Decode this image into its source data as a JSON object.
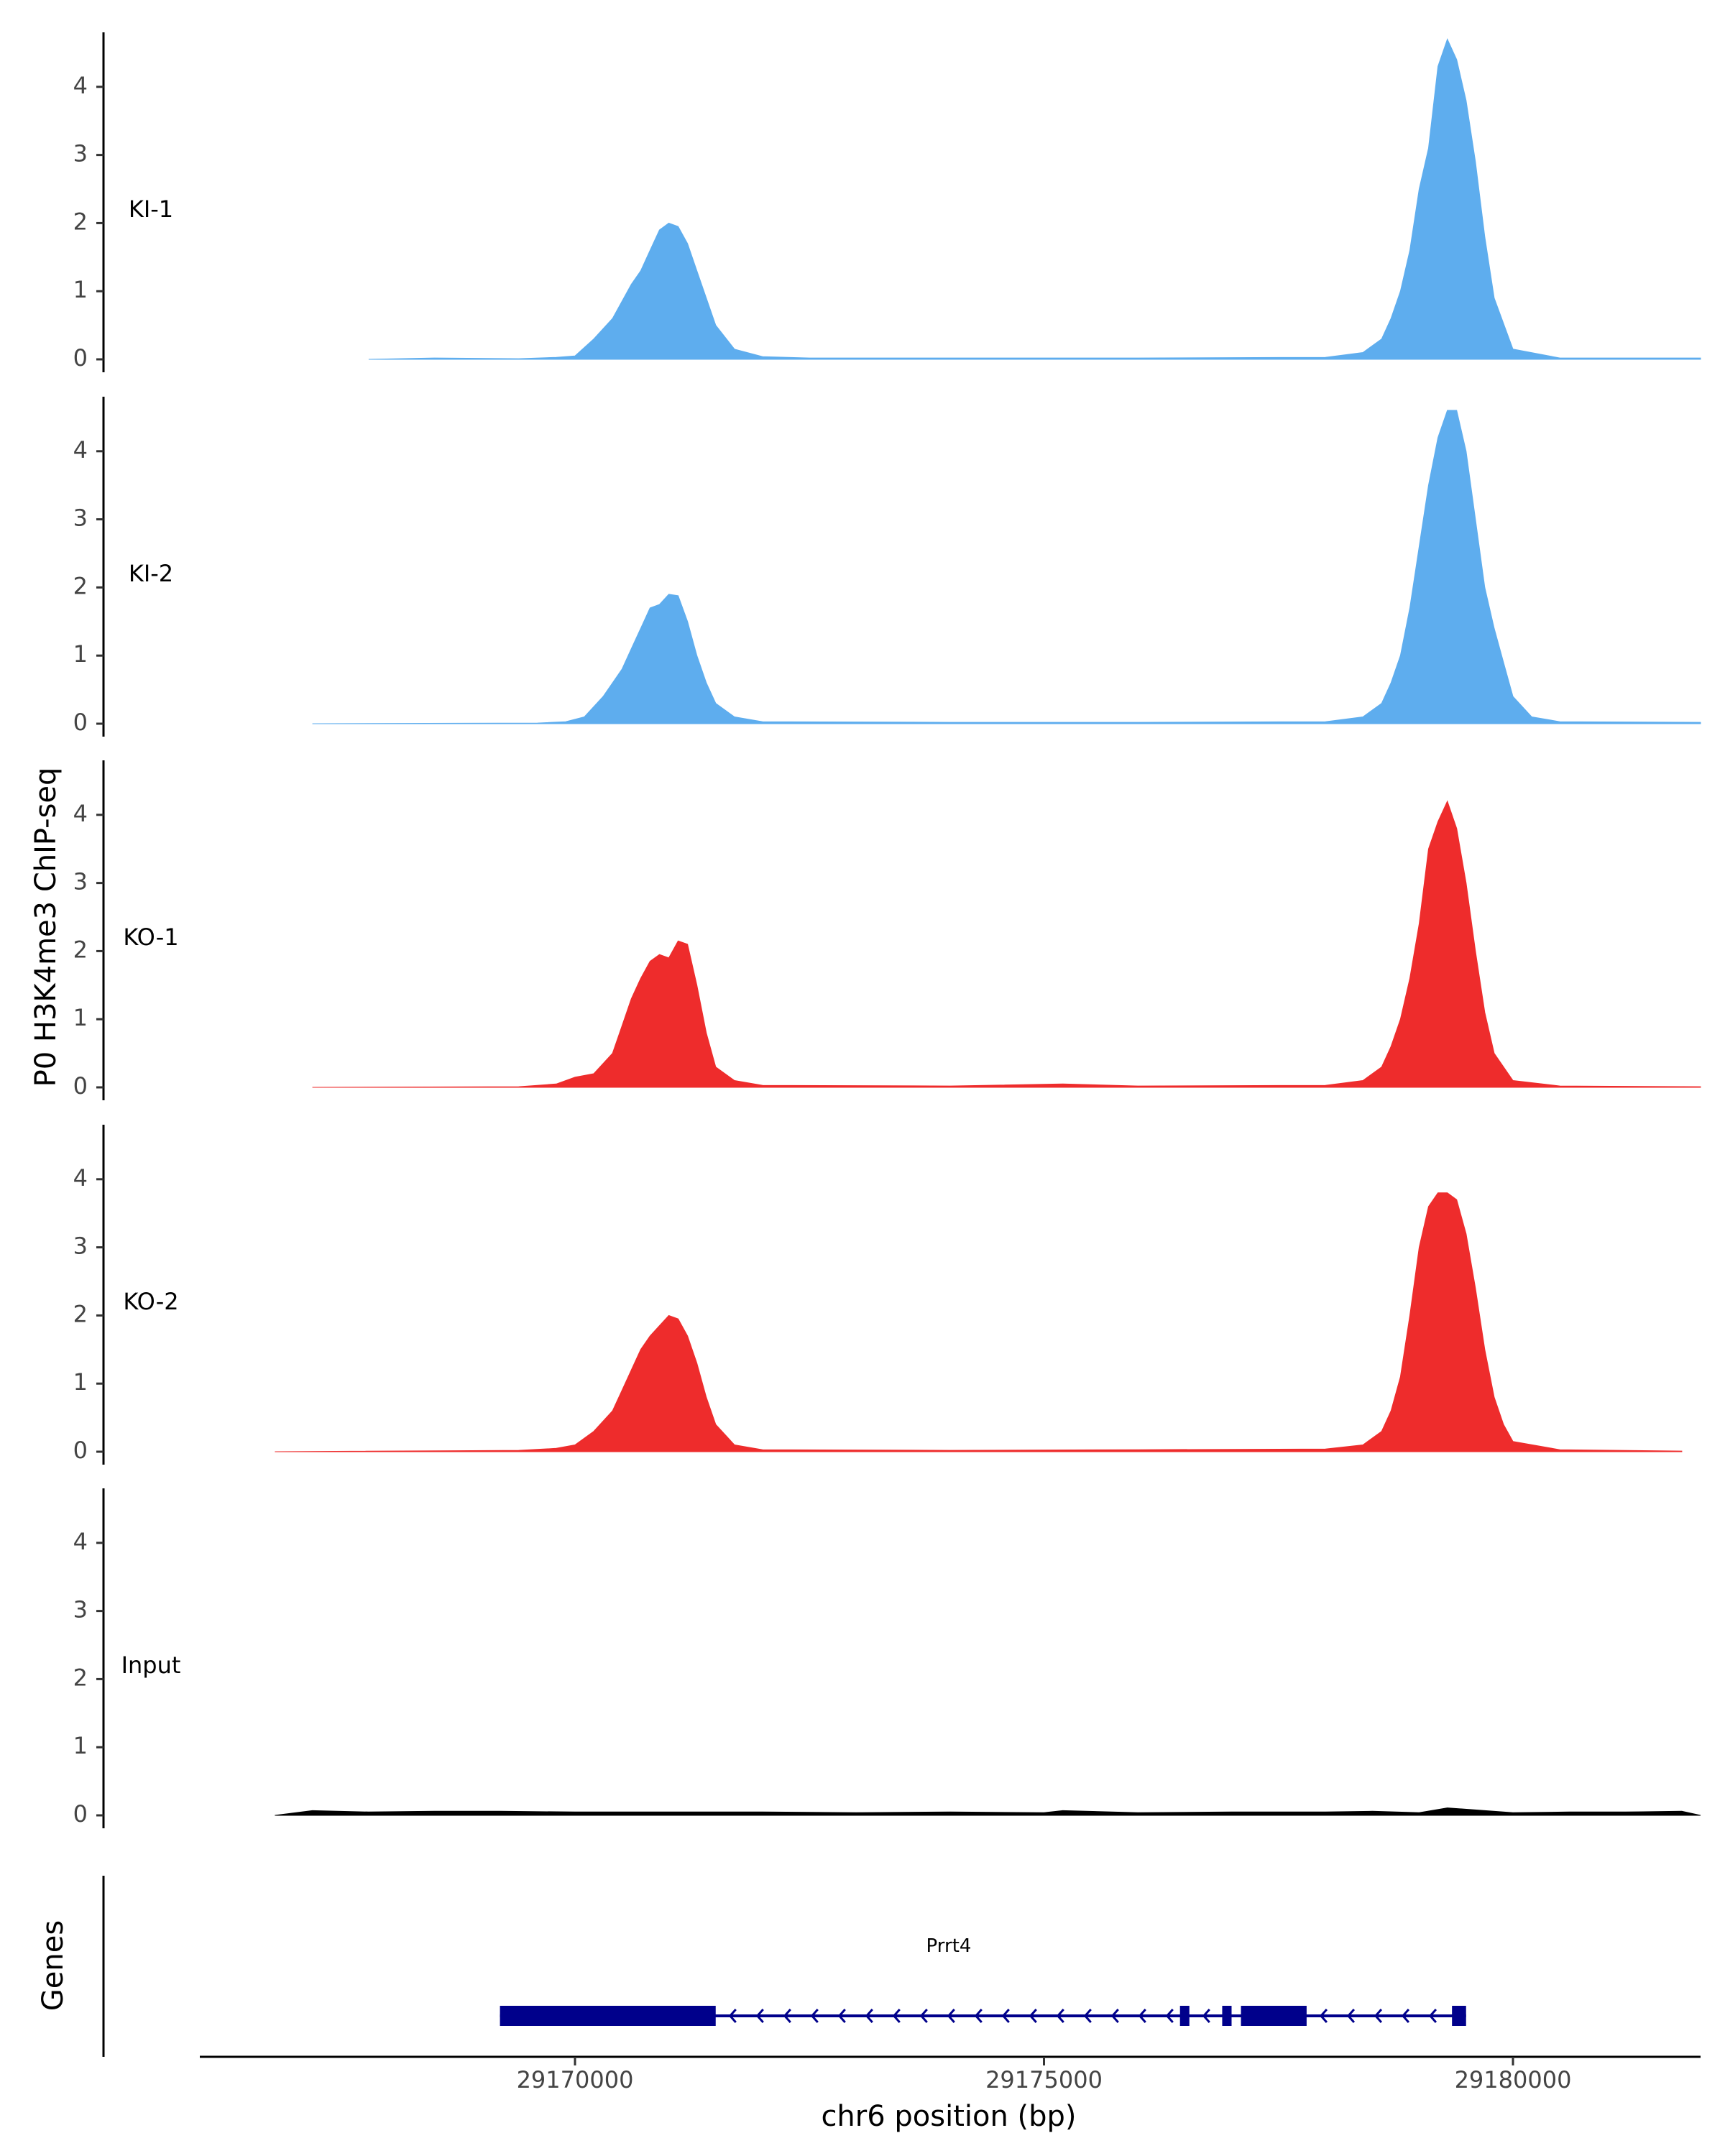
{
  "chart_data": {
    "type": "area",
    "ylabel": "P0 H3K4me3 ChIP-seq",
    "xlabel": "chr6 position (bp)",
    "x_range": [
      29166000,
      29182000
    ],
    "x_ticks": [
      29170000,
      29175000,
      29180000
    ],
    "x_tick_labels": [
      "29170000",
      "29175000",
      "29180000"
    ],
    "y_range": [
      0,
      4.8
    ],
    "y_ticks": [
      0,
      1,
      2,
      3,
      4
    ],
    "y_tick_labels": [
      "0",
      "1",
      "2",
      "3",
      "4"
    ],
    "grid": false,
    "legend": "none",
    "tracks": [
      {
        "label": "KI-1",
        "color": "#5EADEE",
        "x": [
          29167800,
          29168500,
          29169400,
          29169800,
          29170000,
          29170200,
          29170400,
          29170600,
          29170700,
          29170800,
          29170900,
          29171000,
          29171100,
          29171200,
          29171300,
          29171400,
          29171500,
          29171700,
          29172000,
          29172500,
          29174000,
          29176000,
          29178000,
          29178400,
          29178600,
          29178700,
          29178800,
          29178900,
          29179000,
          29179100,
          29179200,
          29179300,
          29179400,
          29179500,
          29179600,
          29179700,
          29179800,
          29180000,
          29180500,
          29182000
        ],
        "y": [
          0.0,
          0.02,
          0.01,
          0.03,
          0.05,
          0.3,
          0.6,
          1.1,
          1.3,
          1.6,
          1.9,
          2.0,
          1.95,
          1.7,
          1.3,
          0.9,
          0.5,
          0.15,
          0.04,
          0.02,
          0.02,
          0.02,
          0.03,
          0.1,
          0.3,
          0.6,
          1.0,
          1.6,
          2.5,
          3.1,
          4.3,
          4.7,
          4.4,
          3.8,
          2.9,
          1.8,
          0.9,
          0.15,
          0.02,
          0.02
        ]
      },
      {
        "label": "KI-2",
        "color": "#5EADEE",
        "x": [
          29167200,
          29169600,
          29169900,
          29170100,
          29170300,
          29170500,
          29170600,
          29170700,
          29170800,
          29170900,
          29171000,
          29171100,
          29171200,
          29171300,
          29171400,
          29171500,
          29171700,
          29172000,
          29174000,
          29176000,
          29178000,
          29178400,
          29178600,
          29178700,
          29178800,
          29178900,
          29179000,
          29179100,
          29179200,
          29179300,
          29179400,
          29179500,
          29179600,
          29179700,
          29179800,
          29179900,
          29180000,
          29180200,
          29180500,
          29182000
        ],
        "y": [
          0.0,
          0.01,
          0.03,
          0.1,
          0.4,
          0.8,
          1.1,
          1.4,
          1.7,
          1.75,
          1.9,
          1.88,
          1.5,
          1.0,
          0.6,
          0.3,
          0.1,
          0.03,
          0.02,
          0.02,
          0.03,
          0.1,
          0.3,
          0.6,
          1.0,
          1.7,
          2.6,
          3.5,
          4.2,
          4.6,
          4.6,
          4.0,
          3.0,
          2.0,
          1.4,
          0.9,
          0.4,
          0.1,
          0.03,
          0.02
        ]
      },
      {
        "label": "KO-1",
        "color": "#EE2C2C",
        "x": [
          29167200,
          29169400,
          29169800,
          29170000,
          29170200,
          29170400,
          29170500,
          29170600,
          29170700,
          29170800,
          29170900,
          29171000,
          29171100,
          29171200,
          29171300,
          29171400,
          29171500,
          29171700,
          29172000,
          29174000,
          29175200,
          29176000,
          29178000,
          29178400,
          29178600,
          29178700,
          29178800,
          29178900,
          29179000,
          29179100,
          29179200,
          29179300,
          29179400,
          29179500,
          29179600,
          29179700,
          29179800,
          29180000,
          29180500,
          29182000
        ],
        "y": [
          0.0,
          0.01,
          0.05,
          0.15,
          0.2,
          0.5,
          0.9,
          1.3,
          1.6,
          1.85,
          1.95,
          1.9,
          2.15,
          2.1,
          1.5,
          0.8,
          0.3,
          0.1,
          0.03,
          0.02,
          0.05,
          0.02,
          0.03,
          0.1,
          0.3,
          0.6,
          1.0,
          1.6,
          2.4,
          3.5,
          3.9,
          4.2,
          3.8,
          3.0,
          2.0,
          1.1,
          0.5,
          0.1,
          0.02,
          0.01
        ]
      },
      {
        "label": "KO-2",
        "color": "#EE2C2C",
        "x": [
          29166800,
          29169400,
          29169800,
          29170000,
          29170200,
          29170400,
          29170500,
          29170600,
          29170700,
          29170800,
          29170900,
          29171000,
          29171100,
          29171200,
          29171300,
          29171400,
          29171500,
          29171700,
          29172000,
          29174000,
          29176000,
          29178000,
          29178400,
          29178600,
          29178700,
          29178800,
          29178900,
          29179000,
          29179100,
          29179200,
          29179300,
          29179400,
          29179500,
          29179600,
          29179700,
          29179800,
          29179900,
          29180000,
          29180500,
          29181800
        ],
        "y": [
          0.0,
          0.02,
          0.05,
          0.1,
          0.3,
          0.6,
          0.9,
          1.2,
          1.5,
          1.7,
          1.85,
          2.0,
          1.95,
          1.7,
          1.3,
          0.8,
          0.4,
          0.1,
          0.03,
          0.02,
          0.03,
          0.04,
          0.1,
          0.3,
          0.6,
          1.1,
          2.0,
          3.0,
          3.6,
          3.8,
          3.8,
          3.7,
          3.2,
          2.4,
          1.5,
          0.8,
          0.4,
          0.15,
          0.03,
          0.01
        ]
      },
      {
        "label": "Input",
        "color": "#000000",
        "x": [
          29166800,
          29167200,
          29167800,
          29168500,
          29169200,
          29170000,
          29171000,
          29172000,
          29173000,
          29174000,
          29175000,
          29175200,
          29176000,
          29177000,
          29178000,
          29178500,
          29179000,
          29179300,
          29180000,
          29180600,
          29181200,
          29181800,
          29182000
        ],
        "y": [
          0.0,
          0.07,
          0.05,
          0.06,
          0.06,
          0.05,
          0.05,
          0.05,
          0.04,
          0.05,
          0.04,
          0.07,
          0.04,
          0.05,
          0.05,
          0.06,
          0.04,
          0.11,
          0.04,
          0.05,
          0.05,
          0.06,
          0.0
        ]
      }
    ],
    "genes_track": {
      "label": "Genes",
      "gene_name": "Prrt4",
      "color": "#00008B",
      "strand": "-",
      "start": 29169200,
      "end": 29179500,
      "exons": [
        [
          29169200,
          29171500
        ],
        [
          29176450,
          29176550
        ],
        [
          29176900,
          29177000
        ],
        [
          29177100,
          29177800
        ],
        [
          29179350,
          29179500
        ]
      ]
    }
  }
}
